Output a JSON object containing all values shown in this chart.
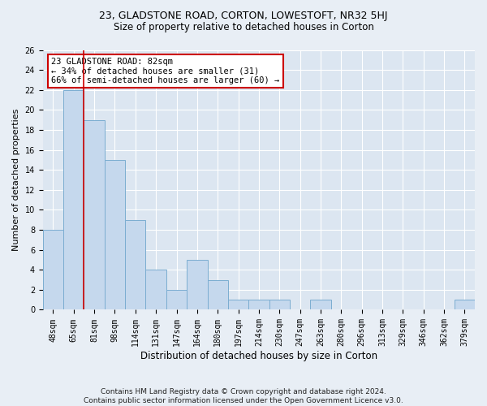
{
  "title1": "23, GLADSTONE ROAD, CORTON, LOWESTOFT, NR32 5HJ",
  "title2": "Size of property relative to detached houses in Corton",
  "xlabel": "Distribution of detached houses by size in Corton",
  "ylabel": "Number of detached properties",
  "categories": [
    "48sqm",
    "65sqm",
    "81sqm",
    "98sqm",
    "114sqm",
    "131sqm",
    "147sqm",
    "164sqm",
    "180sqm",
    "197sqm",
    "214sqm",
    "230sqm",
    "247sqm",
    "263sqm",
    "280sqm",
    "296sqm",
    "313sqm",
    "329sqm",
    "346sqm",
    "362sqm",
    "379sqm"
  ],
  "values": [
    8,
    22,
    19,
    15,
    9,
    4,
    2,
    5,
    3,
    1,
    1,
    1,
    0,
    1,
    0,
    0,
    0,
    0,
    0,
    0,
    1
  ],
  "bar_color": "#c5d8ed",
  "bar_edge_color": "#7badd1",
  "vline_x": 1.5,
  "vline_color": "#cc0000",
  "annotation_text": "23 GLADSTONE ROAD: 82sqm\n← 34% of detached houses are smaller (31)\n66% of semi-detached houses are larger (60) →",
  "annotation_box_facecolor": "#ffffff",
  "annotation_box_edgecolor": "#cc0000",
  "ylim": [
    0,
    26
  ],
  "yticks": [
    0,
    2,
    4,
    6,
    8,
    10,
    12,
    14,
    16,
    18,
    20,
    22,
    24,
    26
  ],
  "footer": "Contains HM Land Registry data © Crown copyright and database right 2024.\nContains public sector information licensed under the Open Government Licence v3.0.",
  "fig_bg_color": "#e8eef5",
  "plot_bg_color": "#dce6f1",
  "grid_color": "#ffffff",
  "title1_fontsize": 9,
  "title2_fontsize": 8.5,
  "ylabel_fontsize": 8,
  "xlabel_fontsize": 8.5,
  "tick_fontsize": 7,
  "annotation_fontsize": 7.5,
  "footer_fontsize": 6.5
}
